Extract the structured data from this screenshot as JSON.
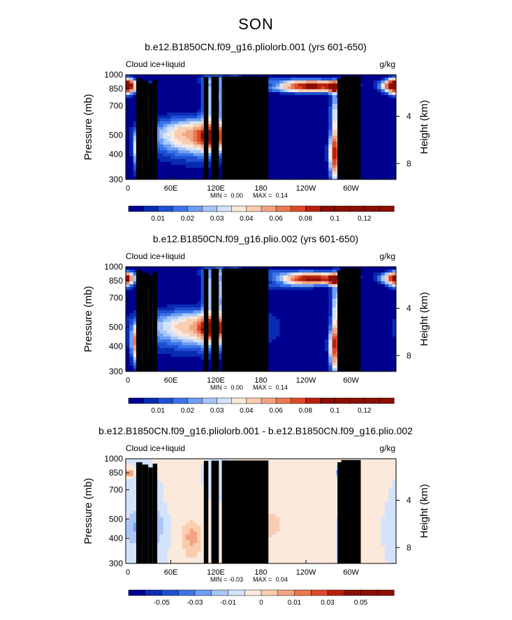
{
  "figure": {
    "season_title": "SON"
  },
  "colors": {
    "abs_levels": [
      "#00008f",
      "#0a2bb4",
      "#1e4fd2",
      "#3a74e8",
      "#6f9ef3",
      "#a8c6f7",
      "#d3e3fb",
      "#fbe9dc",
      "#f8cdb0",
      "#f3a583",
      "#ec7752",
      "#dc4a27",
      "#b9210d",
      "#8a0f00"
    ],
    "diff_levels": [
      "#00008f",
      "#0a2bb4",
      "#1e4fd2",
      "#3a74e8",
      "#6f9ef3",
      "#a8c6f7",
      "#d3e3fb",
      "#fbe9dc",
      "#f8cdb0",
      "#f3a583",
      "#ec7752",
      "#dc4a27",
      "#b9210d",
      "#8a0f00"
    ],
    "terrain": "#000000"
  },
  "chart_data": [
    {
      "type": "heatmap",
      "title": "b.e12.B1850CN.f09_g16.pliolorb.001 (yrs 601-650)",
      "variable_label": "Cloud ice+liquid",
      "units_label": "g/kg",
      "ylabel": "Pressure (mb)",
      "y2label": "Height (km)",
      "x_ticks": [
        "0",
        "60E",
        "120E",
        "180",
        "120W",
        "60W"
      ],
      "x_tick_values": [
        0,
        60,
        120,
        180,
        240,
        300
      ],
      "xlim": [
        0,
        360
      ],
      "y_ticks": [
        "300",
        "400",
        "500",
        "700",
        "850",
        "1000"
      ],
      "y_tick_values": [
        300,
        400,
        500,
        700,
        850,
        1000
      ],
      "ylim": [
        1000,
        300
      ],
      "y2_ticks": [
        "8",
        "4"
      ],
      "y2_tick_pressures": [
        360,
        620
      ],
      "min_text": "MIN =",
      "min_val": "0.00",
      "max_text": "MAX =",
      "max_val": "0.14",
      "cbar_labels": [
        "0.01",
        "0.02",
        "0.03",
        "0.04",
        "0.06",
        "0.08",
        "0.1",
        "0.12"
      ],
      "cbar_label_boundaries": [
        1,
        3,
        5,
        7,
        9,
        11,
        13,
        15
      ],
      "cbar_boundaries": [
        "",
        "0.01",
        "",
        "0.02",
        "",
        "0.03",
        "",
        "0.04",
        "",
        "0.06",
        "",
        "0.08",
        "",
        "0.1",
        "",
        "0.12",
        ""
      ],
      "features": [
        {
          "lon": 20,
          "p": 430,
          "s_lon": 5,
          "s_p": 65,
          "v": 0.09
        },
        {
          "lon": 30,
          "p": 620,
          "s_lon": 4,
          "s_p": 130,
          "v": 0.07
        },
        {
          "lon": 0,
          "p": 880,
          "s_lon": 8,
          "s_p": 50,
          "v": 0.1
        },
        {
          "lon": 95,
          "p": 500,
          "s_lon": 40,
          "s_p": 70,
          "v": 0.055
        },
        {
          "lon": 110,
          "p": 490,
          "s_lon": 10,
          "s_p": 40,
          "v": 0.05
        },
        {
          "lon": 145,
          "p": 490,
          "s_lon": 15,
          "s_p": 45,
          "v": 0.045
        },
        {
          "lon": 110,
          "p": 780,
          "s_lon": 6,
          "s_p": 160,
          "v": 0.03
        },
        {
          "lon": 125,
          "p": 780,
          "s_lon": 5,
          "s_p": 170,
          "v": 0.025
        },
        {
          "lon": 145,
          "p": 760,
          "s_lon": 5,
          "s_p": 170,
          "v": 0.03
        },
        {
          "lon": 248,
          "p": 875,
          "s_lon": 26,
          "s_p": 35,
          "v": 0.1
        },
        {
          "lon": 278,
          "p": 870,
          "s_lon": 5,
          "s_p": 30,
          "v": 0.13
        },
        {
          "lon": 280,
          "p": 560,
          "s_lon": 5,
          "s_p": 190,
          "v": 0.04
        },
        {
          "lon": 279,
          "p": 400,
          "s_lon": 5,
          "s_p": 60,
          "v": 0.065
        },
        {
          "lon": 355,
          "p": 880,
          "s_lon": 12,
          "s_p": 35,
          "v": 0.05
        },
        {
          "lon": 190,
          "p": 935,
          "s_lon": 70,
          "s_p": 30,
          "v": 0.012
        },
        {
          "lon": 200,
          "p": 840,
          "s_lon": 25,
          "s_p": 20,
          "v": 0.01
        }
      ],
      "terrain": [
        {
          "lon0": 14,
          "lon1": 22,
          "p": 960
        },
        {
          "lon0": 22,
          "lon1": 30,
          "p": 935
        },
        {
          "lon0": 30,
          "lon1": 36,
          "p": 905
        },
        {
          "lon0": 36,
          "lon1": 42,
          "p": 945
        },
        {
          "lon0": 104,
          "lon1": 110,
          "p": 975
        },
        {
          "lon0": 114,
          "lon1": 124,
          "p": 978
        },
        {
          "lon0": 128,
          "lon1": 190,
          "p": 980
        },
        {
          "lon0": 282,
          "lon1": 287,
          "p": 960
        },
        {
          "lon0": 287,
          "lon1": 313,
          "p": 985
        }
      ]
    },
    {
      "type": "heatmap",
      "title": "b.e12.B1850CN.f09_g16.plio.002 (yrs 601-650)",
      "variable_label": "Cloud ice+liquid",
      "units_label": "g/kg",
      "ylabel": "Pressure (mb)",
      "y2label": "Height (km)",
      "x_ticks": [
        "0",
        "60E",
        "120E",
        "180",
        "120W",
        "60W"
      ],
      "x_tick_values": [
        0,
        60,
        120,
        180,
        240,
        300
      ],
      "xlim": [
        0,
        360
      ],
      "y_ticks": [
        "300",
        "400",
        "500",
        "700",
        "850",
        "1000"
      ],
      "y_tick_values": [
        300,
        400,
        500,
        700,
        850,
        1000
      ],
      "ylim": [
        1000,
        300
      ],
      "y2_ticks": [
        "8",
        "4"
      ],
      "y2_tick_pressures": [
        360,
        620
      ],
      "min_text": "MIN =",
      "min_val": "0.00",
      "max_text": "MAX =",
      "max_val": "0.14",
      "cbar_labels": [
        "0.01",
        "0.02",
        "0.03",
        "0.04",
        "0.06",
        "0.08",
        "0.1",
        "0.12"
      ],
      "cbar_label_boundaries": [
        1,
        3,
        5,
        7,
        9,
        11,
        13,
        15
      ],
      "cbar_boundaries": [
        "",
        "0.01",
        "",
        "0.02",
        "",
        "0.03",
        "",
        "0.04",
        "",
        "0.06",
        "",
        "0.08",
        "",
        "0.1",
        "",
        "0.12",
        ""
      ],
      "features": [
        {
          "lon": 18,
          "p": 420,
          "s_lon": 6,
          "s_p": 60,
          "v": 0.085
        },
        {
          "lon": 30,
          "p": 600,
          "s_lon": 4,
          "s_p": 130,
          "v": 0.07
        },
        {
          "lon": 0,
          "p": 870,
          "s_lon": 7,
          "s_p": 50,
          "v": 0.06
        },
        {
          "lon": 100,
          "p": 500,
          "s_lon": 50,
          "s_p": 70,
          "v": 0.05
        },
        {
          "lon": 112,
          "p": 490,
          "s_lon": 10,
          "s_p": 40,
          "v": 0.06
        },
        {
          "lon": 145,
          "p": 490,
          "s_lon": 15,
          "s_p": 45,
          "v": 0.045
        },
        {
          "lon": 110,
          "p": 780,
          "s_lon": 6,
          "s_p": 160,
          "v": 0.03
        },
        {
          "lon": 125,
          "p": 780,
          "s_lon": 5,
          "s_p": 170,
          "v": 0.03
        },
        {
          "lon": 145,
          "p": 760,
          "s_lon": 5,
          "s_p": 170,
          "v": 0.03
        },
        {
          "lon": 248,
          "p": 870,
          "s_lon": 26,
          "s_p": 35,
          "v": 0.1
        },
        {
          "lon": 278,
          "p": 865,
          "s_lon": 5,
          "s_p": 30,
          "v": 0.13
        },
        {
          "lon": 281,
          "p": 570,
          "s_lon": 5,
          "s_p": 190,
          "v": 0.04
        },
        {
          "lon": 279,
          "p": 400,
          "s_lon": 5,
          "s_p": 60,
          "v": 0.065
        },
        {
          "lon": 355,
          "p": 875,
          "s_lon": 12,
          "s_p": 35,
          "v": 0.05
        },
        {
          "lon": 200,
          "p": 935,
          "s_lon": 70,
          "s_p": 30,
          "v": 0.012
        },
        {
          "lon": 210,
          "p": 800,
          "s_lon": 25,
          "s_p": 20,
          "v": 0.012
        }
      ],
      "terrain": [
        {
          "lon0": 14,
          "lon1": 22,
          "p": 960
        },
        {
          "lon0": 22,
          "lon1": 30,
          "p": 935
        },
        {
          "lon0": 30,
          "lon1": 36,
          "p": 905
        },
        {
          "lon0": 36,
          "lon1": 42,
          "p": 945
        },
        {
          "lon0": 104,
          "lon1": 110,
          "p": 975
        },
        {
          "lon0": 114,
          "lon1": 124,
          "p": 978
        },
        {
          "lon0": 128,
          "lon1": 190,
          "p": 980
        },
        {
          "lon0": 282,
          "lon1": 287,
          "p": 960
        },
        {
          "lon0": 287,
          "lon1": 313,
          "p": 985
        }
      ]
    },
    {
      "type": "heatmap",
      "title": "b.e12.B1850CN.f09_g16.pliolorb.001 - b.e12.B1850CN.f09_g16.plio.002",
      "variable_label": "Cloud ice+liquid",
      "units_label": "g/kg",
      "ylabel": "Pressure (mb)",
      "y2label": "Height (km)",
      "x_ticks": [
        "0",
        "60E",
        "120E",
        "180",
        "120W",
        "60W"
      ],
      "x_tick_values": [
        0,
        60,
        120,
        180,
        240,
        300
      ],
      "xlim": [
        0,
        360
      ],
      "y_ticks": [
        "300",
        "400",
        "500",
        "700",
        "850",
        "1000"
      ],
      "y_tick_values": [
        300,
        400,
        500,
        700,
        850,
        1000
      ],
      "ylim": [
        1000,
        300
      ],
      "y2_ticks": [
        "8",
        "4"
      ],
      "y2_tick_pressures": [
        360,
        620
      ],
      "min_text": "MIN =",
      "min_val": "-0.03",
      "max_text": "MAX =",
      "max_val": "0.04",
      "cbar_labels": [
        "-0.05",
        "-0.03",
        "-0.01",
        "0",
        "0.01",
        "0.03",
        "0.05"
      ],
      "cbar_label_boundaries": [
        1,
        3,
        5,
        7,
        9,
        11,
        13
      ],
      "cbar_boundaries": [
        "",
        "-0.05",
        "",
        "-0.03",
        "",
        "-0.01",
        "",
        "0",
        "",
        "0.01",
        "",
        "0.03",
        "",
        "0.05",
        ""
      ],
      "features": [
        {
          "lon": 190,
          "p": 600,
          "s_lon": 60,
          "s_p": 250,
          "v": 0.004
        },
        {
          "lon": 80,
          "p": 650,
          "s_lon": 20,
          "s_p": 200,
          "v": 0.004
        },
        {
          "lon": 120,
          "p": 740,
          "s_lon": 25,
          "s_p": 150,
          "v": -0.004
        },
        {
          "lon": 12,
          "p": 450,
          "s_lon": 10,
          "s_p": 60,
          "v": -0.02
        },
        {
          "lon": 38,
          "p": 460,
          "s_lon": 10,
          "s_p": 70,
          "v": -0.02
        },
        {
          "lon": 25,
          "p": 650,
          "s_lon": 12,
          "s_p": 110,
          "v": -0.012
        },
        {
          "lon": 88,
          "p": 400,
          "s_lon": 9,
          "s_p": 60,
          "v": 0.022
        },
        {
          "lon": 168,
          "p": 430,
          "s_lon": 14,
          "s_p": 90,
          "v": 0.018
        },
        {
          "lon": 198,
          "p": 470,
          "s_lon": 10,
          "s_p": 60,
          "v": 0.008
        },
        {
          "lon": 288,
          "p": 400,
          "s_lon": 4,
          "s_p": 60,
          "v": -0.02
        },
        {
          "lon": 5,
          "p": 850,
          "s_lon": 4,
          "s_p": 25,
          "v": 0.04
        },
        {
          "lon": 50,
          "p": 840,
          "s_lon": 8,
          "s_p": 25,
          "v": 0.008
        },
        {
          "lon": 283,
          "p": 855,
          "s_lon": 3,
          "s_p": 25,
          "v": -0.025
        },
        {
          "lon": 300,
          "p": 850,
          "s_lon": 5,
          "s_p": 30,
          "v": 0.012
        },
        {
          "lon": 270,
          "p": 840,
          "s_lon": 10,
          "s_p": 30,
          "v": 0.008
        },
        {
          "lon": 325,
          "p": 800,
          "s_lon": 12,
          "s_p": 60,
          "v": 0.005
        }
      ],
      "terrain": [
        {
          "lon0": 14,
          "lon1": 22,
          "p": 960
        },
        {
          "lon0": 22,
          "lon1": 30,
          "p": 935
        },
        {
          "lon0": 30,
          "lon1": 36,
          "p": 905
        },
        {
          "lon0": 36,
          "lon1": 42,
          "p": 945
        },
        {
          "lon0": 104,
          "lon1": 110,
          "p": 975
        },
        {
          "lon0": 114,
          "lon1": 124,
          "p": 978
        },
        {
          "lon0": 128,
          "lon1": 190,
          "p": 980
        },
        {
          "lon0": 282,
          "lon1": 287,
          "p": 960
        },
        {
          "lon0": 287,
          "lon1": 313,
          "p": 985
        }
      ]
    }
  ]
}
